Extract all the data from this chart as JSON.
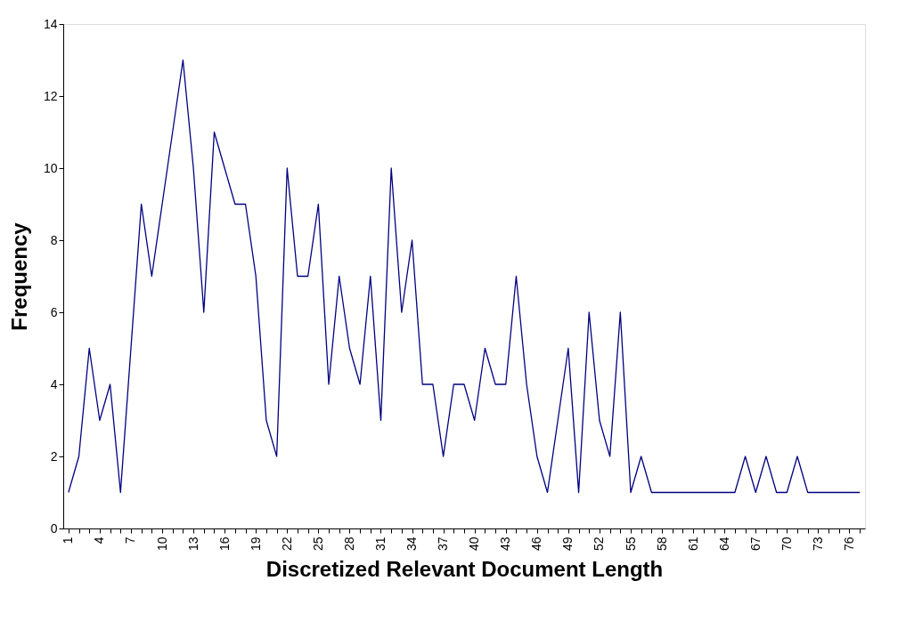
{
  "chart_data": {
    "type": "line",
    "xlabel": "Discretized Relevant Document Length",
    "ylabel": "Frequency",
    "categories": [
      "1",
      null,
      null,
      "4",
      null,
      null,
      "7",
      null,
      null,
      "10",
      null,
      null,
      "13",
      null,
      null,
      "16",
      null,
      null,
      "19",
      null,
      null,
      "22",
      null,
      null,
      "25",
      null,
      null,
      "28",
      null,
      null,
      "31",
      null,
      null,
      "34",
      null,
      null,
      "37",
      null,
      null,
      "40",
      null,
      null,
      "43",
      null,
      null,
      "46",
      null,
      null,
      "49",
      null,
      null,
      "52",
      null,
      null,
      "55",
      null,
      null,
      "58",
      null,
      null,
      "61",
      null,
      null,
      "64",
      null,
      null,
      "67",
      null,
      null,
      "70",
      null,
      null,
      "73",
      null,
      null,
      "76",
      null
    ],
    "series": [
      {
        "color": "#000080",
        "values": [
          1,
          2,
          5,
          3,
          4,
          1,
          5,
          9,
          7,
          9,
          11,
          13,
          10,
          6,
          11,
          10,
          9,
          9,
          7,
          3,
          2,
          10,
          7,
          7,
          9,
          4,
          7,
          5,
          4,
          7,
          3,
          10,
          6,
          8,
          4,
          4,
          2,
          4,
          4,
          3,
          5,
          4,
          4,
          7,
          4,
          2,
          1,
          3,
          5,
          1,
          6,
          3,
          2,
          6,
          1,
          2,
          1,
          1,
          1,
          1,
          1,
          1,
          1,
          1,
          1,
          2,
          1,
          2,
          1,
          1,
          2,
          1,
          1,
          1,
          1,
          1,
          1
        ]
      }
    ],
    "ylim": [
      0,
      14
    ],
    "yticks": [
      0,
      2,
      4,
      6,
      8,
      10,
      12,
      14
    ],
    "grid": false,
    "legend": false,
    "marker": "none",
    "line_style": "solid"
  }
}
